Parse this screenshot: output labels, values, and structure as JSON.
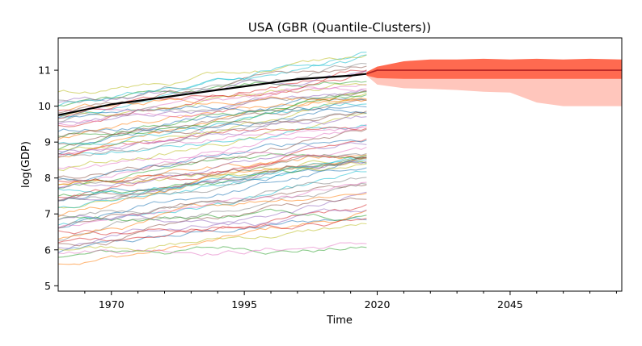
{
  "chart_data": {
    "type": "line",
    "title": "USA (GBR (Quantile-Clusters))",
    "xlabel": "Time",
    "ylabel": "log(GDP)",
    "xlim": [
      1960,
      2066
    ],
    "ylim": [
      4.85,
      11.9
    ],
    "x_ticks": [
      1970,
      1995,
      2020,
      2045
    ],
    "y_ticks": [
      5,
      6,
      7,
      8,
      9,
      10,
      11
    ],
    "grid": false,
    "legend": "none",
    "history_years": [
      1960,
      2018
    ],
    "highlight_series": {
      "color": "#000000",
      "x": [
        1960,
        1965,
        1970,
        1975,
        1980,
        1985,
        1990,
        1995,
        2000,
        2005,
        2010,
        2015,
        2018
      ],
      "values": [
        9.75,
        9.9,
        10.05,
        10.15,
        10.25,
        10.35,
        10.45,
        10.55,
        10.65,
        10.75,
        10.8,
        10.85,
        10.9
      ]
    },
    "background_series_count": 70,
    "background_series_range": [
      5.8,
      11.3
    ],
    "forecast": {
      "x": [
        2018,
        2020,
        2025,
        2030,
        2035,
        2040,
        2045,
        2050,
        2055,
        2060,
        2066
      ],
      "median": [
        10.9,
        11.0,
        11.0,
        11.0,
        11.0,
        11.0,
        11.0,
        11.0,
        11.0,
        11.0,
        11.0
      ],
      "inner_upper": [
        10.95,
        11.1,
        11.25,
        11.3,
        11.3,
        11.32,
        11.3,
        11.32,
        11.3,
        11.32,
        11.3
      ],
      "inner_lower": [
        10.85,
        10.78,
        10.76,
        10.76,
        10.76,
        10.76,
        10.76,
        10.76,
        10.76,
        10.76,
        10.76
      ],
      "outer_upper": [
        10.9,
        11.0,
        11.0,
        11.0,
        11.0,
        11.0,
        11.0,
        11.0,
        11.0,
        11.0,
        11.0
      ],
      "outer_lower": [
        10.85,
        10.6,
        10.5,
        10.48,
        10.45,
        10.4,
        10.38,
        10.1,
        10.0,
        10.0,
        10.0
      ],
      "median_color": "#b22222",
      "inner_band_color": "#ff6a50",
      "outer_band_color": "#ffc6bc"
    }
  }
}
